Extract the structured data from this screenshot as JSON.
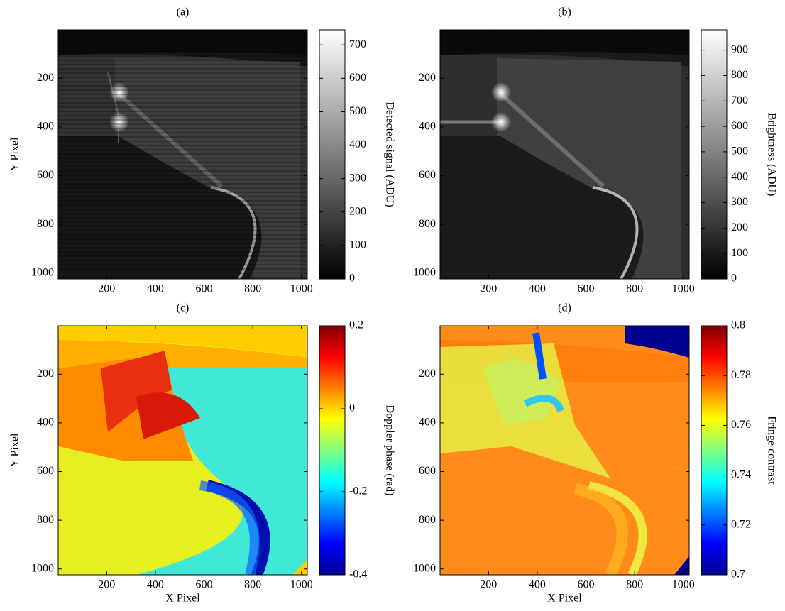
{
  "chart_data": [
    {
      "type": "heatmap",
      "title": "(a)",
      "ylabel": "Y Pixel",
      "xlim": [
        1,
        1024
      ],
      "ylim": [
        1024,
        1
      ],
      "xticks": [
        200,
        400,
        600,
        800,
        1000
      ],
      "yticks": [
        200,
        400,
        600,
        800,
        1000
      ],
      "colorbar": {
        "label": "Detected signal (ADU)",
        "colormap": "gray",
        "lim": [
          0,
          745
        ],
        "ticks": [
          0,
          100,
          200,
          300,
          400,
          500,
          600,
          700
        ]
      }
    },
    {
      "type": "heatmap",
      "title": "(b)",
      "xlim": [
        1,
        1024
      ],
      "ylim": [
        1024,
        1
      ],
      "xticks": [
        200,
        400,
        600,
        800,
        1000
      ],
      "yticks": [
        200,
        400,
        600,
        800,
        1000
      ],
      "colorbar": {
        "label": "Brightness (ADU)",
        "colormap": "gray",
        "lim": [
          0,
          980
        ],
        "ticks": [
          0,
          100,
          200,
          300,
          400,
          500,
          600,
          700,
          800,
          900
        ]
      }
    },
    {
      "type": "heatmap",
      "title": "(c)",
      "xlabel": "X Pixel",
      "ylabel": "Y Pixel",
      "xlim": [
        1,
        1024
      ],
      "ylim": [
        1024,
        1
      ],
      "xticks": [
        200,
        400,
        600,
        800,
        1000
      ],
      "yticks": [
        200,
        400,
        600,
        800,
        1000
      ],
      "colorbar": {
        "label": "Doppler phase (rad)",
        "colormap": "jet",
        "lim": [
          -0.4,
          0.2
        ],
        "ticks": [
          -0.4,
          -0.2,
          0,
          0.2
        ]
      }
    },
    {
      "type": "heatmap",
      "title": "(d)",
      "xlabel": "X Pixel",
      "xlim": [
        1,
        1024
      ],
      "ylim": [
        1024,
        1
      ],
      "xticks": [
        200,
        400,
        600,
        800,
        1000
      ],
      "yticks": [
        200,
        400,
        600,
        800,
        1000
      ],
      "colorbar": {
        "label": "Fringe contrast",
        "colormap": "jet",
        "lim": [
          0.7,
          0.8
        ],
        "ticks": [
          0.7,
          0.72,
          0.74,
          0.76,
          0.78,
          0.8
        ]
      }
    }
  ]
}
